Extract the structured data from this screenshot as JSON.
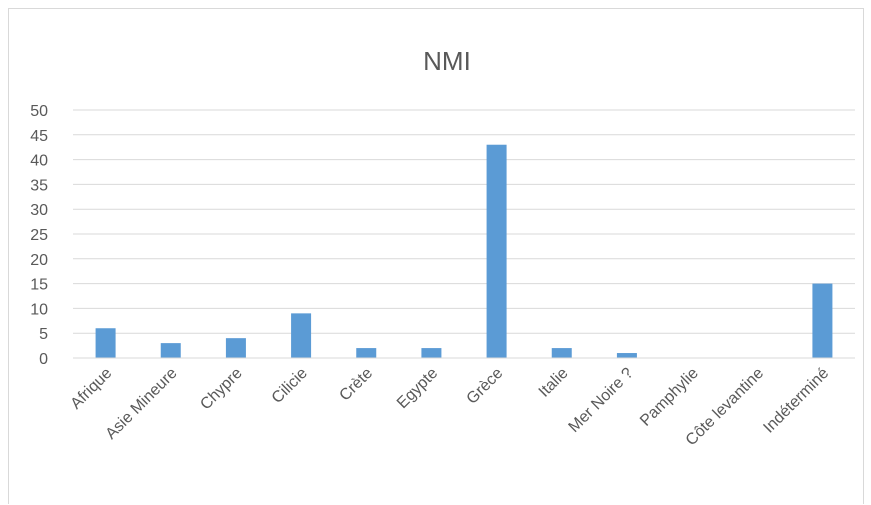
{
  "chart_data": {
    "type": "bar",
    "title": "NMI",
    "xlabel": "",
    "ylabel": "",
    "categories": [
      "Afrique",
      "Asie Mineure",
      "Chypre",
      "Cilicie",
      "Crète",
      "Egypte",
      "Grèce",
      "Italie",
      "Mer Noire ?",
      "Pamphylie",
      "Côte levantine",
      "Indéterminé"
    ],
    "values": [
      6,
      3,
      4,
      9,
      2,
      2,
      43,
      2,
      1,
      0,
      0,
      15
    ],
    "ylim": [
      0,
      50
    ],
    "yticks": [
      "0",
      "5",
      "10",
      "15",
      "20",
      "25",
      "30",
      "35",
      "40",
      "45",
      "50"
    ],
    "grid": true,
    "legend": "none",
    "bar_color": "#5b9bd5",
    "grid_color": "#d9d9d9",
    "text_color": "#595959"
  }
}
